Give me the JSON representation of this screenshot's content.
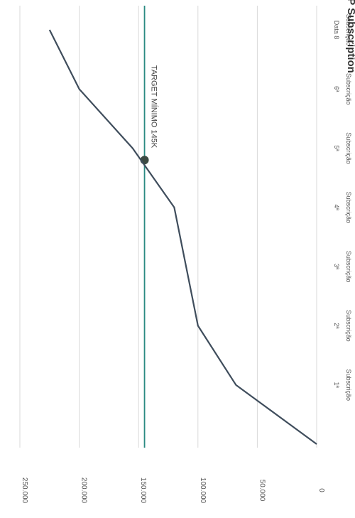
{
  "chart_data": {
    "type": "line",
    "orientation": "rotated-90-clockwise",
    "title": "SP Subscription",
    "categories": [
      "",
      "1ª",
      "2ª",
      "3ª",
      "4ª",
      "5ª",
      "6ª",
      "Data 8"
    ],
    "category_sublabels": [
      "",
      "Subscrição",
      "Subscrição",
      "Subscrição",
      "Subscrição",
      "Subscrição",
      "Subscrição",
      "Subscrição"
    ],
    "series": [
      {
        "values": [
          0,
          68000,
          100000,
          110000,
          120000,
          155000,
          200000,
          225000
        ]
      }
    ],
    "ylim": [
      0,
      250000
    ],
    "y_ticks": [
      0,
      50000,
      100000,
      150000,
      200000,
      250000
    ],
    "y_tick_labels": [
      "0",
      "50.000",
      "100.000",
      "150.000",
      "200.000",
      "250.000"
    ],
    "target": {
      "value": 145000,
      "label": "TARGET MÍNIMO 145K",
      "crossing_x": 4.8
    },
    "grid": true,
    "colors": {
      "line": "#3f4d5c",
      "target": "#2a8a82",
      "marker": "#3c4a42",
      "grid": "#d9d9d9",
      "text": "#555555"
    }
  }
}
